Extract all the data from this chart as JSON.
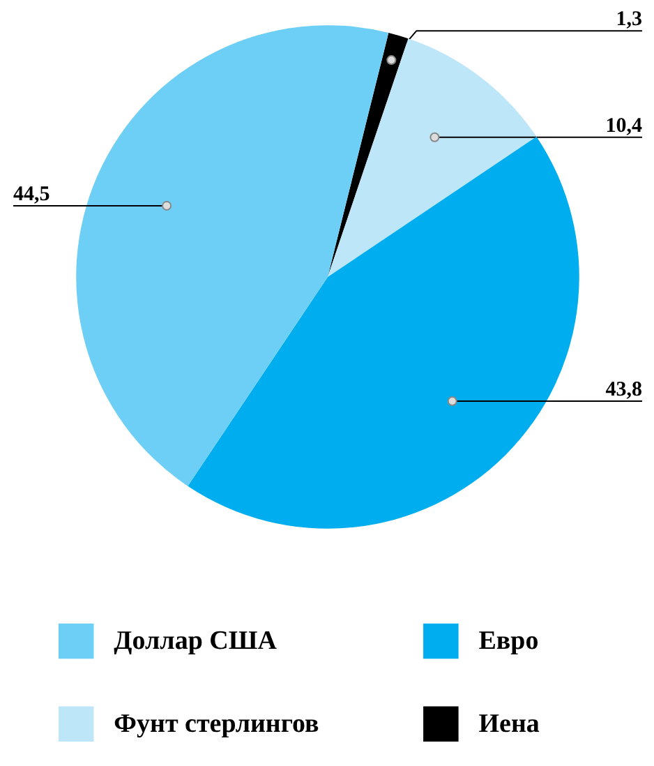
{
  "chart_data": {
    "type": "pie",
    "categories": [
      "Доллар США",
      "Евро",
      "Фунт стерлингов",
      "Иена"
    ],
    "values": [
      44.5,
      43.8,
      10.4,
      1.3
    ],
    "colors": [
      "#6dcff6",
      "#00aeef",
      "#bde6f8",
      "#000000"
    ],
    "value_labels": [
      "44,5",
      "43,8",
      "10,4",
      "1,3"
    ],
    "legend": "bottom"
  }
}
